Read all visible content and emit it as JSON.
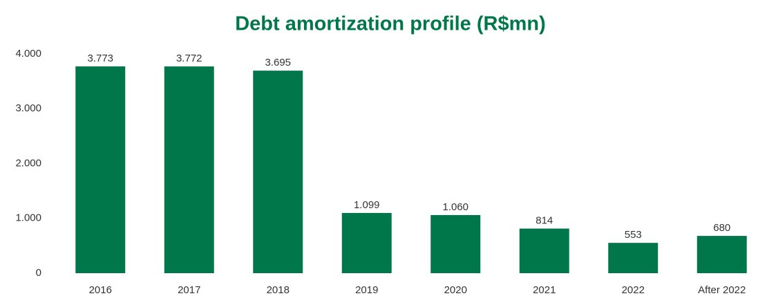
{
  "chart_data": {
    "type": "bar",
    "title": "Debt amortization profile (R$mn)",
    "categories": [
      "2016",
      "2017",
      "2018",
      "2019",
      "2020",
      "2021",
      "2022",
      "After 2022"
    ],
    "values": [
      3773,
      3772,
      3695,
      1099,
      1060,
      814,
      553,
      680
    ],
    "value_labels": [
      "3.773",
      "3.772",
      "3.695",
      "1.099",
      "1.060",
      "814",
      "553",
      "680"
    ],
    "color": "#00774a",
    "ylim": [
      0,
      4000
    ],
    "yticks": [
      0,
      {
        "value": 1000,
        "label": "1.000"
      },
      {
        "value": 2000,
        "label": "2.000"
      },
      {
        "value": 3000,
        "label": "3.000"
      },
      {
        "value": 4000,
        "label": "4.000"
      }
    ],
    "grid": false
  }
}
